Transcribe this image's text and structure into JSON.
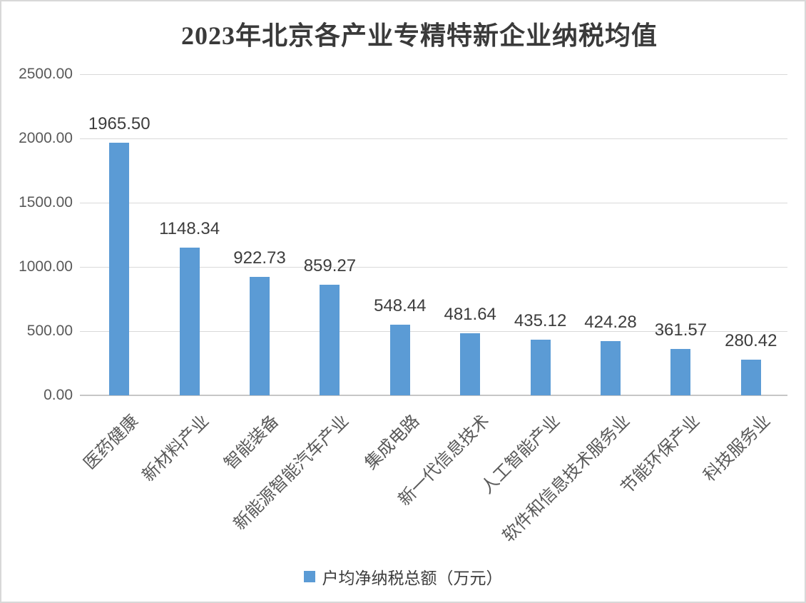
{
  "chart_data": {
    "type": "bar",
    "title": "2023年北京各产业专精特新企业纳税均值",
    "categories": [
      "医药健康",
      "新材料产业",
      "智能装备",
      "新能源智能汽车产业",
      "集成电路",
      "新一代信息技术",
      "人工智能产业",
      "软件和信息技术服务业",
      "节能环保产业",
      "科技服务业"
    ],
    "values": [
      1965.5,
      1148.34,
      922.73,
      859.27,
      548.44,
      481.64,
      435.12,
      424.28,
      361.57,
      280.42
    ],
    "value_labels": [
      "1965.50",
      "1148.34",
      "922.73",
      "859.27",
      "548.44",
      "481.64",
      "435.12",
      "424.28",
      "361.57",
      "280.42"
    ],
    "series_name": "户均净纳税总额（万元）",
    "xlabel": "",
    "ylabel": "",
    "ylim": [
      0,
      2500
    ],
    "ytick_step": 500,
    "ytick_labels": [
      "0.00",
      "500.00",
      "1000.00",
      "1500.00",
      "2000.00",
      "2500.00"
    ],
    "grid": true,
    "legend_position": "bottom",
    "bar_color": "#5B9BD5",
    "gridline_color": "#D9D9D9",
    "axis_line_color": "#C6C6C6",
    "axis_text_color": "#595959",
    "data_label_color": "#3D3D3D",
    "title_color": "#3A3A3A"
  }
}
